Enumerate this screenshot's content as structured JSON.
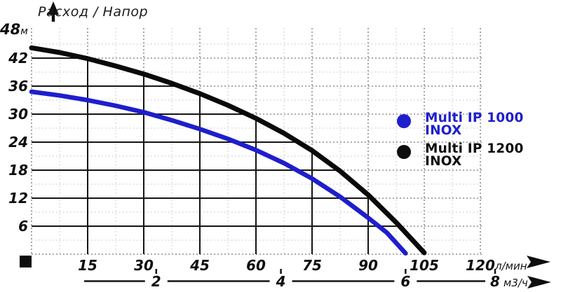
{
  "title": "Расход / Напор",
  "y_axis_top": {
    "value": "48",
    "unit": "м"
  },
  "legend": [
    {
      "line1": "Multi IP 1000",
      "line2": "INOX",
      "color": "#1e1ecd"
    },
    {
      "line1": "Multi IP 1200",
      "line2": "INOX",
      "color": "#0d0d0d"
    }
  ],
  "colors": {
    "blue_curve": "#1e1ecd",
    "black_curve": "#0a0a0a",
    "major_grid_dotted": "#8f8f8f",
    "minor_grid": "#c9c9c9",
    "solid_grid": "#141414"
  },
  "chart_data": {
    "type": "line",
    "title": "Расход / Напор",
    "xlabel": "л/мин",
    "x2label": "м3/ч",
    "ylabel": "м",
    "xlim": [
      0,
      120
    ],
    "ylim": [
      0,
      48
    ],
    "x_ticks": [
      15,
      30,
      45,
      60,
      75,
      90,
      105,
      120
    ],
    "y_ticks": [
      42,
      36,
      30,
      24,
      18,
      12,
      6
    ],
    "y_top_tick": 48,
    "x2_ticks": [
      2,
      4,
      6,
      8
    ],
    "x_major_step": 15,
    "y_major_step": 6,
    "grid": "dotted major grid; solid black grid below Multi IP 1200 curve; light minor grid at half steps",
    "legend_position": "center-right",
    "series": [
      {
        "name": "Multi IP 1000 INOX",
        "color": "#1e1ecd",
        "points": [
          [
            0,
            34.8
          ],
          [
            7.5,
            34.0
          ],
          [
            15,
            33.0
          ],
          [
            22.5,
            31.8
          ],
          [
            30,
            30.4
          ],
          [
            37.5,
            28.7
          ],
          [
            45,
            26.8
          ],
          [
            52.5,
            24.7
          ],
          [
            60,
            22.3
          ],
          [
            67.5,
            19.5
          ],
          [
            75,
            16.2
          ],
          [
            82.5,
            12.3
          ],
          [
            90,
            7.8
          ],
          [
            95,
            4.6
          ],
          [
            100,
            0.2
          ]
        ]
      },
      {
        "name": "Multi IP 1200 INOX",
        "color": "#0a0a0a",
        "points": [
          [
            0,
            44.2
          ],
          [
            7.5,
            43.2
          ],
          [
            15,
            41.9
          ],
          [
            22.5,
            40.3
          ],
          [
            30,
            38.6
          ],
          [
            37.5,
            36.6
          ],
          [
            45,
            34.4
          ],
          [
            52.5,
            31.9
          ],
          [
            60,
            29.1
          ],
          [
            67.5,
            25.9
          ],
          [
            75,
            22.2
          ],
          [
            82.5,
            17.8
          ],
          [
            90,
            12.7
          ],
          [
            97.5,
            6.8
          ],
          [
            105,
            0.3
          ]
        ]
      }
    ]
  }
}
